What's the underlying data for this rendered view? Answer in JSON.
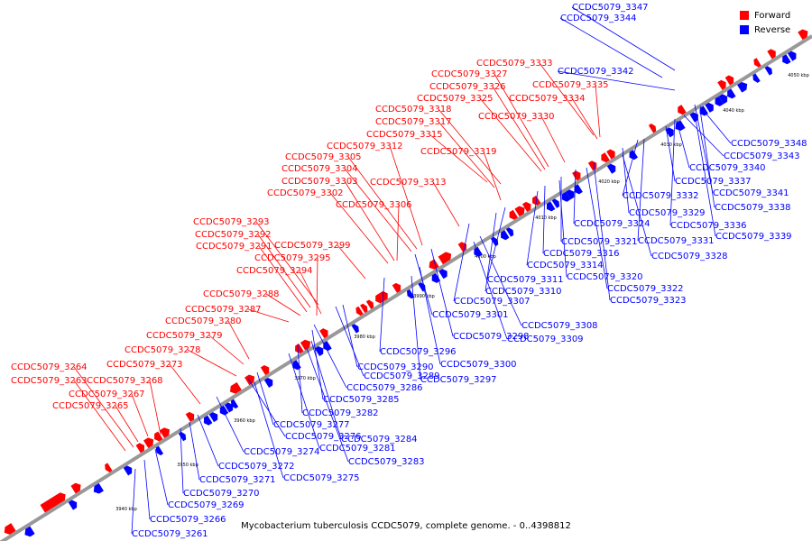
{
  "caption": "Mycobacterium tuberculosis CCDC5079, complete genome. - 0..4398812",
  "legend": [
    {
      "label": "Forward",
      "color": "#ff0000"
    },
    {
      "label": "Reverse",
      "color": "#0000ff"
    }
  ],
  "colors": {
    "forward": "#ff0000",
    "reverse": "#0000ff",
    "axis": "#999999"
  },
  "ticks": [
    "3940 kbp",
    "3950 kbp",
    "3960 kbp",
    "3970 kbp",
    "3980 kbp",
    "3990 kbp",
    "4000 kbp",
    "4010 kbp",
    "4020 kbp",
    "4030 kbp",
    "4040 kbp",
    "4050 kbp"
  ],
  "forward_labels": [
    "CCDC5079_3264",
    "CCDC5079_3263",
    "CCDC5079_3268",
    "CCDC5079_3267",
    "CCDC5079_3265",
    "CCDC5079_3273",
    "CCDC5079_3278",
    "CCDC5079_3279",
    "CCDC5079_3280",
    "CCDC5079_3287",
    "CCDC5079_3288",
    "CCDC5079_3294",
    "CCDC5079_3295",
    "CCDC5079_3291",
    "CCDC5079_3299",
    "CCDC5079_3292",
    "CCDC5079_3293",
    "CCDC5079_3306",
    "CCDC5079_3302",
    "CCDC5079_3303",
    "CCDC5079_3304",
    "CCDC5079_3305",
    "CCDC5079_3313",
    "CCDC5079_3312",
    "CCDC5079_3319",
    "CCDC5079_3315",
    "CCDC5079_3317",
    "CCDC5079_3318",
    "CCDC5079_3330",
    "CCDC5079_3325",
    "CCDC5079_3334",
    "CCDC5079_3326",
    "CCDC5079_3335",
    "CCDC5079_3327",
    "CCDC5079_3333"
  ],
  "reverse_labels": [
    "CCDC5079_3347",
    "CCDC5079_3344",
    "CCDC5079_3342",
    "CCDC5079_3348",
    "CCDC5079_3343",
    "CCDC5079_3340",
    "CCDC5079_3337",
    "CCDC5079_3341",
    "CCDC5079_3332",
    "CCDC5079_3338",
    "CCDC5079_3329",
    "CCDC5079_3324",
    "CCDC5079_3336",
    "CCDC5079_3331",
    "CCDC5079_3339",
    "CCDC5079_3321",
    "CCDC5079_3316",
    "CCDC5079_3328",
    "CCDC5079_3314",
    "CCDC5079_3311",
    "CCDC5079_3320",
    "CCDC5079_3310",
    "CCDC5079_3322",
    "CCDC5079_3307",
    "CCDC5079_3323",
    "CCDC5079_3301",
    "CCDC5079_3308",
    "CCDC5079_3298",
    "CCDC5079_3309",
    "CCDC5079_3296",
    "CCDC5079_3300",
    "CCDC5079_3290",
    "CCDC5079_3289",
    "CCDC5079_3297",
    "CCDC5079_3286",
    "CCDC5079_3285",
    "CCDC5079_3282",
    "CCDC5079_3277",
    "CCDC5079_3276",
    "CCDC5079_3284",
    "CCDC5079_3274",
    "CCDC5079_3281",
    "CCDC5079_3283",
    "CCDC5079_3272",
    "CCDC5079_3271",
    "CCDC5079_3275",
    "CCDC5079_3270",
    "CCDC5079_3269",
    "CCDC5079_3266",
    "CCDC5079_3261"
  ]
}
